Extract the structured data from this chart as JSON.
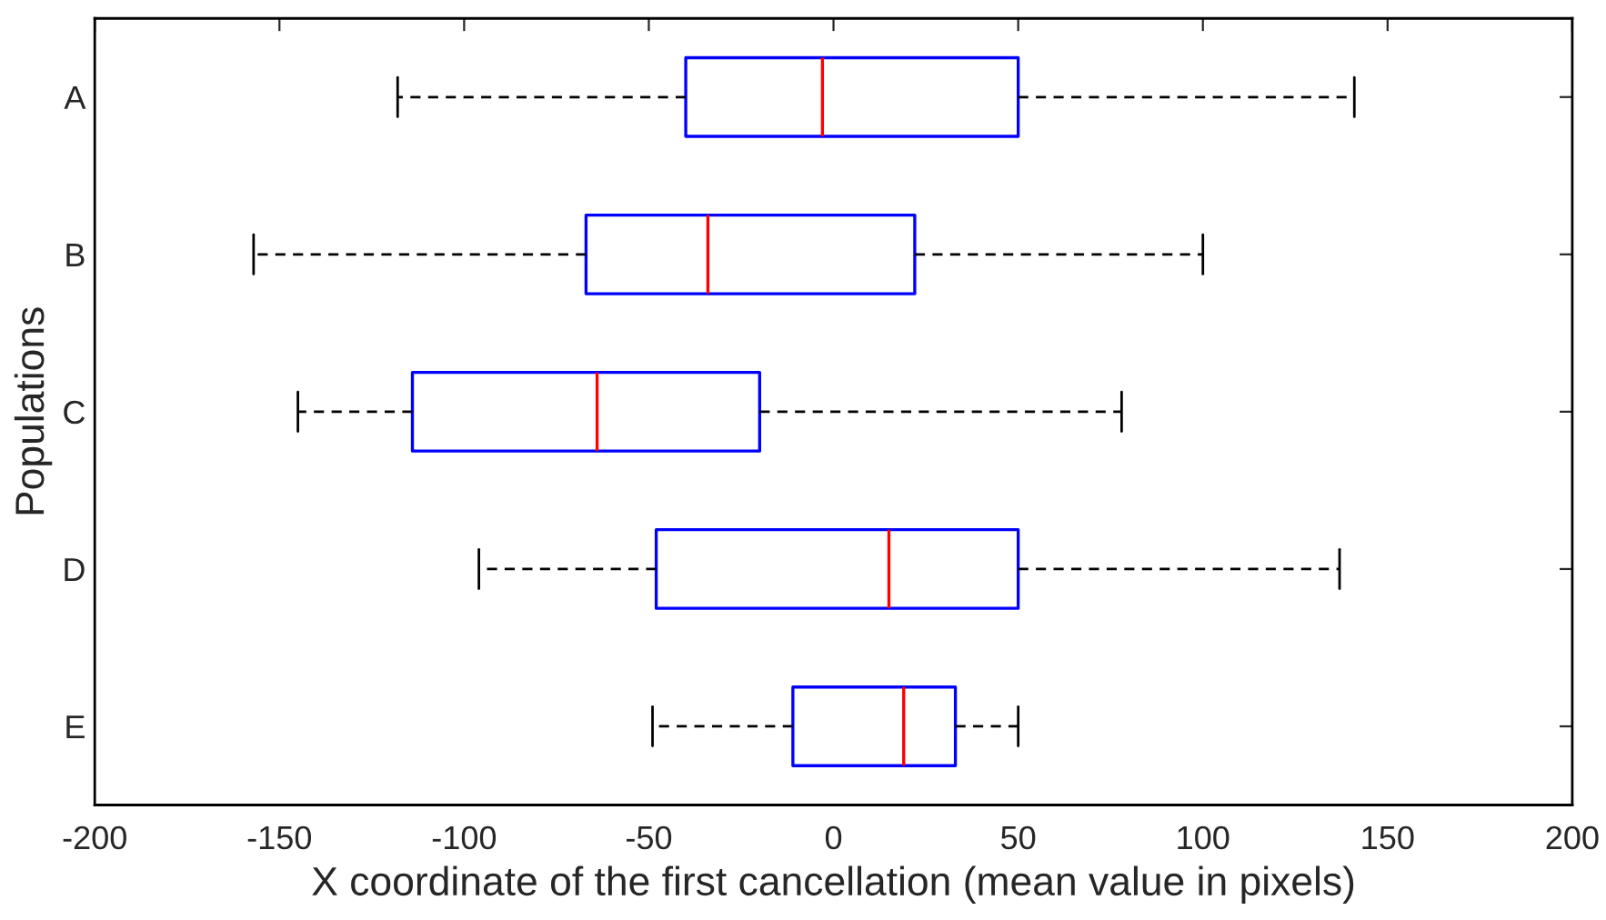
{
  "chart_data": {
    "type": "box",
    "orientation": "horizontal",
    "xlabel": "X coordinate of the first cancellation (mean value in pixels)",
    "ylabel": "Populations",
    "categories": [
      "A",
      "B",
      "C",
      "D",
      "E"
    ],
    "series": [
      {
        "color": "#0000ff",
        "boxes": [
          {
            "low": -118,
            "q1": -40,
            "median": -3,
            "q3": 50,
            "high": 141
          },
          {
            "low": -157,
            "q1": -67,
            "median": -34,
            "q3": 22,
            "high": 100
          },
          {
            "low": -145,
            "q1": -114,
            "median": -64,
            "q3": -20,
            "high": 78
          },
          {
            "low": -96,
            "q1": -48,
            "median": 15,
            "q3": 50,
            "high": 137
          },
          {
            "low": -49,
            "q1": -11,
            "median": 19,
            "q3": 33,
            "high": 50
          }
        ]
      }
    ],
    "xlim": [
      -200,
      200
    ],
    "xticks": [
      -200,
      -150,
      -100,
      -50,
      0,
      50,
      100,
      150,
      200
    ],
    "grid": false
  }
}
